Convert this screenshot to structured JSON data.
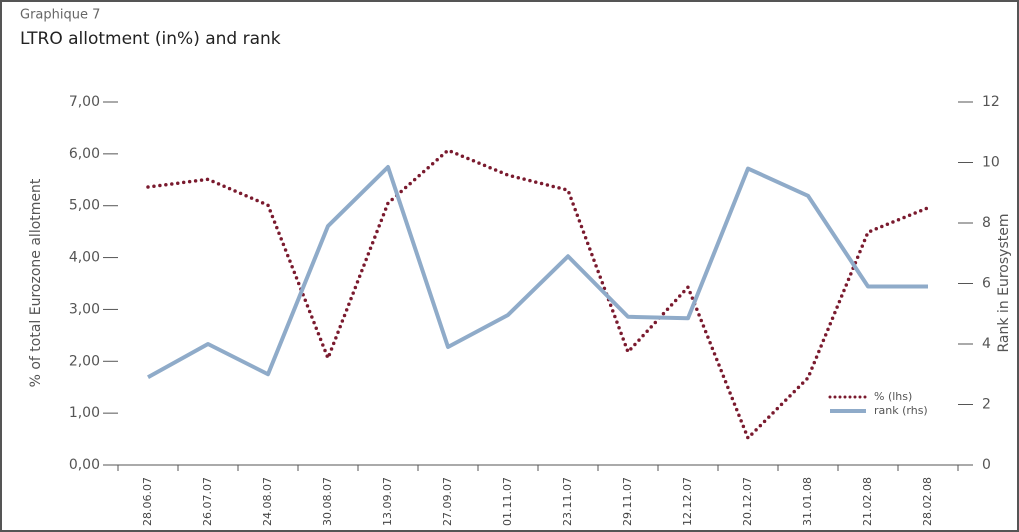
{
  "chart_data": {
    "type": "line",
    "kicker": "Graphique 7",
    "title": "LTRO allotment (in%) and rank",
    "y_label": "% of total Eurozone allotment",
    "y2_label": "Rank in Eurosystem",
    "categories": [
      "28.06.07",
      "26.07.07",
      "24.08.07",
      "30.08.07",
      "13.09.07",
      "27.09.07",
      "01.11.07",
      "23.11.07",
      "29.11.07",
      "12.12.07",
      "20.12.07",
      "31.01.08",
      "21.02.08",
      "28.02.08"
    ],
    "series": [
      {
        "name": "% (lhs)",
        "color": "#7a1a2e",
        "style": "dotted",
        "axis": "y",
        "values": [
          5.36,
          5.51,
          5.01,
          2.06,
          5.05,
          6.07,
          5.59,
          5.3,
          2.18,
          3.43,
          0.52,
          1.68,
          4.49,
          4.96
        ]
      },
      {
        "name": "rank (rhs)",
        "color": "#8fabc9",
        "style": "solid",
        "axis": "y2",
        "values": [
          2.9,
          4,
          3,
          7.9,
          9.85,
          3.9,
          4.96,
          6.9,
          4.9,
          4.85,
          9.8,
          8.9,
          5.9,
          5.9
        ]
      }
    ],
    "ylim": [
      0,
      7
    ],
    "yticks": [
      {
        "value": 0,
        "label": "0,00"
      },
      {
        "value": 1,
        "label": "1,00"
      },
      {
        "value": 2,
        "label": "2,00"
      },
      {
        "value": 3,
        "label": "3,00"
      },
      {
        "value": 4,
        "label": "4,00"
      },
      {
        "value": 5,
        "label": "5,00"
      },
      {
        "value": 6,
        "label": "6,00"
      },
      {
        "value": 7,
        "label": "7,00"
      }
    ],
    "y2lim": [
      0,
      12
    ],
    "y2ticks": [
      0,
      2,
      4,
      6,
      8,
      10,
      12
    ],
    "legend": "lower right"
  }
}
